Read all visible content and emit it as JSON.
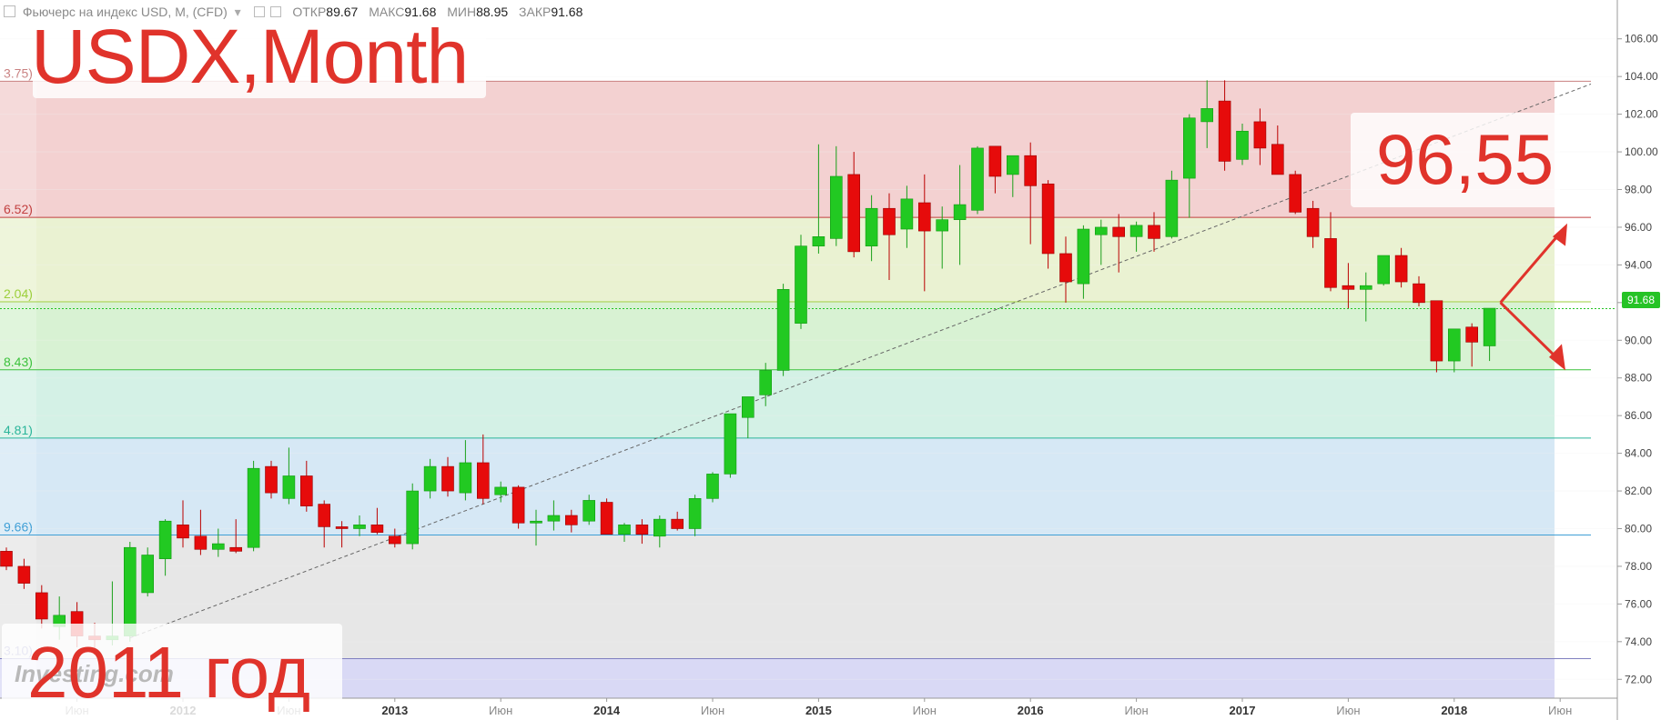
{
  "header": {
    "instrument": "Фьючерс на индекс USD, M, (CFD)",
    "open_label": "ОТКР",
    "open_value": "89.67",
    "high_label": "МАКС",
    "high_value": "91.68",
    "low_label": "МИН",
    "low_value": "88.95",
    "close_label": "ЗАКР",
    "close_value": "91.68"
  },
  "overlay": {
    "title": "USDX,Month",
    "year_note": "2011 год",
    "target": "96,55",
    "watermark": "Investing.com"
  },
  "current_price": "91.68",
  "colors": {
    "up": "#22c922",
    "down": "#e60b0b",
    "annotation": "#e0332b"
  },
  "chart_data": {
    "type": "candlestick",
    "title": "USDX,Month",
    "ylim": [
      71.0,
      107.0
    ],
    "y_ticks": [
      "72.00",
      "74.00",
      "76.00",
      "78.00",
      "80.00",
      "82.00",
      "84.00",
      "86.00",
      "88.00",
      "90.00",
      "92.00",
      "94.00",
      "96.00",
      "98.00",
      "100.00",
      "102.00",
      "104.00",
      "106.00"
    ],
    "x_labels": [
      {
        "index": 4,
        "label": "Июн"
      },
      {
        "index": 10,
        "label": "2012"
      },
      {
        "index": 16,
        "label": "Июн"
      },
      {
        "index": 22,
        "label": "2013"
      },
      {
        "index": 28,
        "label": "Июн"
      },
      {
        "index": 34,
        "label": "2014"
      },
      {
        "index": 40,
        "label": "Июн"
      },
      {
        "index": 46,
        "label": "2015"
      },
      {
        "index": 52,
        "label": "Июн"
      },
      {
        "index": 58,
        "label": "2016"
      },
      {
        "index": 64,
        "label": "Июн"
      },
      {
        "index": 70,
        "label": "2017"
      },
      {
        "index": 76,
        "label": "Июн"
      },
      {
        "index": 82,
        "label": "2018"
      },
      {
        "index": 88,
        "label": "Июн"
      }
    ],
    "fib_levels": [
      {
        "value": 103.75,
        "label": "3.75)"
      },
      {
        "value": 96.52,
        "label": "6.52)"
      },
      {
        "value": 92.04,
        "label": "2.04)"
      },
      {
        "value": 88.43,
        "label": "8.43)"
      },
      {
        "value": 84.81,
        "label": "4.81)"
      },
      {
        "value": 79.66,
        "label": "9.66)"
      },
      {
        "value": 73.1,
        "label": "3.10)"
      }
    ],
    "candles": [
      {
        "o": 78.8,
        "h": 79.0,
        "l": 77.8,
        "c": 78.0
      },
      {
        "o": 78.0,
        "h": 78.4,
        "l": 76.8,
        "c": 77.1
      },
      {
        "o": 76.6,
        "h": 77.0,
        "l": 74.7,
        "c": 75.2
      },
      {
        "o": 74.8,
        "h": 76.4,
        "l": 74.1,
        "c": 75.4
      },
      {
        "o": 75.6,
        "h": 76.1,
        "l": 73.7,
        "c": 74.3
      },
      {
        "o": 74.3,
        "h": 75.0,
        "l": 73.3,
        "c": 74.1
      },
      {
        "o": 74.1,
        "h": 77.2,
        "l": 73.8,
        "c": 74.3
      },
      {
        "o": 74.3,
        "h": 79.3,
        "l": 74.0,
        "c": 79.0
      },
      {
        "o": 76.6,
        "h": 79.0,
        "l": 76.4,
        "c": 78.6
      },
      {
        "o": 78.4,
        "h": 80.5,
        "l": 77.5,
        "c": 80.4
      },
      {
        "o": 80.2,
        "h": 81.5,
        "l": 79.0,
        "c": 79.5
      },
      {
        "o": 79.6,
        "h": 81.0,
        "l": 78.6,
        "c": 78.9
      },
      {
        "o": 78.9,
        "h": 80.0,
        "l": 78.5,
        "c": 79.2
      },
      {
        "o": 79.0,
        "h": 80.5,
        "l": 78.7,
        "c": 78.8
      },
      {
        "o": 79.0,
        "h": 83.6,
        "l": 78.8,
        "c": 83.2
      },
      {
        "o": 83.3,
        "h": 83.6,
        "l": 81.6,
        "c": 81.9
      },
      {
        "o": 81.6,
        "h": 84.3,
        "l": 81.3,
        "c": 82.8
      },
      {
        "o": 82.8,
        "h": 83.6,
        "l": 80.9,
        "c": 81.2
      },
      {
        "o": 81.3,
        "h": 81.5,
        "l": 79.0,
        "c": 80.1
      },
      {
        "o": 80.1,
        "h": 80.4,
        "l": 79.0,
        "c": 80.0
      },
      {
        "o": 80.0,
        "h": 80.7,
        "l": 79.6,
        "c": 80.2
      },
      {
        "o": 80.2,
        "h": 81.1,
        "l": 79.7,
        "c": 79.8
      },
      {
        "o": 79.6,
        "h": 80.0,
        "l": 79.0,
        "c": 79.2
      },
      {
        "o": 79.2,
        "h": 82.4,
        "l": 78.9,
        "c": 82.0
      },
      {
        "o": 82.0,
        "h": 83.7,
        "l": 81.6,
        "c": 83.3
      },
      {
        "o": 83.3,
        "h": 83.8,
        "l": 81.7,
        "c": 82.0
      },
      {
        "o": 81.9,
        "h": 84.7,
        "l": 81.5,
        "c": 83.5
      },
      {
        "o": 83.5,
        "h": 85.0,
        "l": 81.3,
        "c": 81.6
      },
      {
        "o": 81.8,
        "h": 82.5,
        "l": 81.4,
        "c": 82.2
      },
      {
        "o": 82.2,
        "h": 82.3,
        "l": 80.0,
        "c": 80.3
      },
      {
        "o": 80.3,
        "h": 81.0,
        "l": 79.1,
        "c": 80.4
      },
      {
        "o": 80.4,
        "h": 81.5,
        "l": 79.9,
        "c": 80.7
      },
      {
        "o": 80.7,
        "h": 81.0,
        "l": 79.8,
        "c": 80.2
      },
      {
        "o": 80.4,
        "h": 81.8,
        "l": 80.2,
        "c": 81.5
      },
      {
        "o": 81.4,
        "h": 81.6,
        "l": 79.7,
        "c": 79.7
      },
      {
        "o": 79.7,
        "h": 80.3,
        "l": 79.3,
        "c": 80.2
      },
      {
        "o": 80.2,
        "h": 80.5,
        "l": 79.2,
        "c": 79.7
      },
      {
        "o": 79.6,
        "h": 80.7,
        "l": 79.0,
        "c": 80.5
      },
      {
        "o": 80.5,
        "h": 80.9,
        "l": 79.9,
        "c": 80.0
      },
      {
        "o": 80.0,
        "h": 81.8,
        "l": 79.6,
        "c": 81.6
      },
      {
        "o": 81.6,
        "h": 83.0,
        "l": 81.4,
        "c": 82.9
      },
      {
        "o": 82.9,
        "h": 86.0,
        "l": 82.7,
        "c": 86.1
      },
      {
        "o": 85.9,
        "h": 87.0,
        "l": 84.8,
        "c": 87.0
      },
      {
        "o": 87.1,
        "h": 88.8,
        "l": 86.5,
        "c": 88.4
      },
      {
        "o": 88.4,
        "h": 93.0,
        "l": 88.1,
        "c": 92.7
      },
      {
        "o": 90.9,
        "h": 95.6,
        "l": 90.6,
        "c": 95.0
      },
      {
        "o": 95.0,
        "h": 100.4,
        "l": 94.6,
        "c": 95.5
      },
      {
        "o": 95.4,
        "h": 100.3,
        "l": 95.0,
        "c": 98.7
      },
      {
        "o": 98.8,
        "h": 100.0,
        "l": 94.4,
        "c": 94.7
      },
      {
        "o": 95.0,
        "h": 97.7,
        "l": 94.2,
        "c": 97.0
      },
      {
        "o": 97.0,
        "h": 97.8,
        "l": 93.2,
        "c": 95.6
      },
      {
        "o": 95.9,
        "h": 98.2,
        "l": 94.9,
        "c": 97.5
      },
      {
        "o": 97.3,
        "h": 98.8,
        "l": 92.6,
        "c": 95.8
      },
      {
        "o": 95.8,
        "h": 97.1,
        "l": 93.8,
        "c": 96.4
      },
      {
        "o": 96.4,
        "h": 99.3,
        "l": 94.0,
        "c": 97.2
      },
      {
        "o": 96.9,
        "h": 100.3,
        "l": 96.7,
        "c": 100.2
      },
      {
        "o": 100.3,
        "h": 100.3,
        "l": 97.8,
        "c": 98.7
      },
      {
        "o": 98.8,
        "h": 99.6,
        "l": 97.6,
        "c": 99.8
      },
      {
        "o": 99.8,
        "h": 100.5,
        "l": 95.1,
        "c": 98.2
      },
      {
        "o": 98.3,
        "h": 98.5,
        "l": 93.8,
        "c": 94.6
      },
      {
        "o": 94.6,
        "h": 95.5,
        "l": 92.0,
        "c": 93.1
      },
      {
        "o": 93.0,
        "h": 96.1,
        "l": 92.2,
        "c": 95.9
      },
      {
        "o": 95.6,
        "h": 96.4,
        "l": 94.0,
        "c": 96.0
      },
      {
        "o": 96.0,
        "h": 96.7,
        "l": 93.6,
        "c": 95.5
      },
      {
        "o": 95.5,
        "h": 96.3,
        "l": 94.7,
        "c": 96.1
      },
      {
        "o": 96.1,
        "h": 96.8,
        "l": 94.7,
        "c": 95.4
      },
      {
        "o": 95.5,
        "h": 99.0,
        "l": 95.4,
        "c": 98.5
      },
      {
        "o": 98.6,
        "h": 102.0,
        "l": 96.5,
        "c": 101.8
      },
      {
        "o": 101.6,
        "h": 103.8,
        "l": 100.2,
        "c": 102.3
      },
      {
        "o": 102.7,
        "h": 103.8,
        "l": 99.0,
        "c": 99.5
      },
      {
        "o": 99.6,
        "h": 101.5,
        "l": 99.3,
        "c": 101.1
      },
      {
        "o": 101.6,
        "h": 102.3,
        "l": 99.3,
        "c": 100.2
      },
      {
        "o": 100.4,
        "h": 101.4,
        "l": 98.9,
        "c": 98.8
      },
      {
        "o": 98.8,
        "h": 99.0,
        "l": 96.7,
        "c": 96.8
      },
      {
        "o": 97.0,
        "h": 97.4,
        "l": 94.9,
        "c": 95.5
      },
      {
        "o": 95.4,
        "h": 96.8,
        "l": 92.6,
        "c": 92.8
      },
      {
        "o": 92.9,
        "h": 94.1,
        "l": 91.7,
        "c": 92.7
      },
      {
        "o": 92.7,
        "h": 93.6,
        "l": 91.0,
        "c": 92.9
      },
      {
        "o": 93.0,
        "h": 94.3,
        "l": 92.9,
        "c": 94.5
      },
      {
        "o": 94.5,
        "h": 94.9,
        "l": 92.8,
        "c": 93.1
      },
      {
        "o": 93.0,
        "h": 93.4,
        "l": 91.8,
        "c": 92.0
      },
      {
        "o": 92.1,
        "h": 92.1,
        "l": 88.3,
        "c": 88.9
      },
      {
        "o": 88.9,
        "h": 90.6,
        "l": 88.3,
        "c": 90.6
      },
      {
        "o": 90.7,
        "h": 90.9,
        "l": 88.6,
        "c": 89.9
      },
      {
        "o": 89.7,
        "h": 91.7,
        "l": 88.9,
        "c": 91.7
      }
    ]
  }
}
